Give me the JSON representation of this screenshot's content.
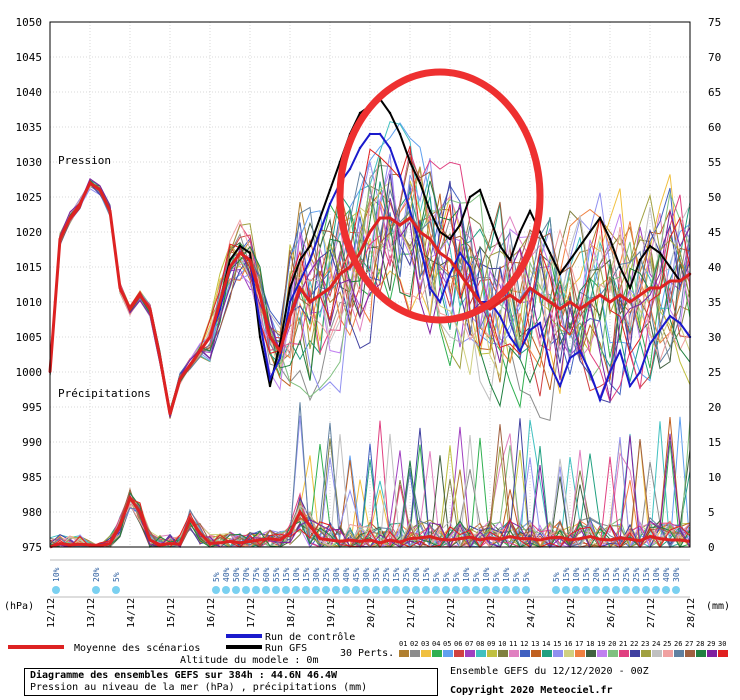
{
  "chart_data": {
    "type": "line",
    "left_axis": {
      "label": "(hPa)",
      "ylim": [
        975,
        1050
      ],
      "ticks": [
        "1050",
        "1045",
        "1040",
        "1035",
        "1030",
        "1025",
        "1020",
        "1015",
        "1010",
        "1005",
        "1000",
        "995",
        "990",
        "985",
        "980",
        "975"
      ]
    },
    "right_axis": {
      "label": "(mm)",
      "ylim": [
        0,
        75
      ],
      "ticks": [
        "75",
        "70",
        "65",
        "60",
        "55",
        "50",
        "45",
        "40",
        "35",
        "30",
        "25",
        "20",
        "15",
        "10",
        "5",
        "0"
      ]
    },
    "x_ticks": [
      "12/12",
      "13/12",
      "14/12",
      "15/12",
      "16/12",
      "17/12",
      "18/12",
      "19/12",
      "20/12",
      "21/12",
      "22/12",
      "23/12",
      "24/12",
      "25/12",
      "26/12",
      "27/12",
      "28/12"
    ],
    "pressure_label": "Pression",
    "precip_label": "Précipitations",
    "snow_marks": [
      {
        "day": 0.25,
        "pct": "10%"
      },
      {
        "day": 1.25,
        "pct": "20%"
      },
      {
        "day": 1.75,
        "pct": "5%"
      },
      {
        "day": 4.25,
        "pct": "5%"
      },
      {
        "day": 4.5,
        "pct": "40%"
      },
      {
        "day": 4.75,
        "pct": "50%"
      },
      {
        "day": 5.0,
        "pct": "70%"
      },
      {
        "day": 5.25,
        "pct": "75%"
      },
      {
        "day": 5.5,
        "pct": "60%"
      },
      {
        "day": 5.75,
        "pct": "55%"
      },
      {
        "day": 6.0,
        "pct": "15%"
      },
      {
        "day": 6.25,
        "pct": "10%"
      },
      {
        "day": 6.5,
        "pct": "15%"
      },
      {
        "day": 6.75,
        "pct": "30%"
      },
      {
        "day": 7.0,
        "pct": "25%"
      },
      {
        "day": 7.25,
        "pct": "30%"
      },
      {
        "day": 7.5,
        "pct": "40%"
      },
      {
        "day": 7.75,
        "pct": "45%"
      },
      {
        "day": 8.0,
        "pct": "30%"
      },
      {
        "day": 8.25,
        "pct": "35%"
      },
      {
        "day": 8.5,
        "pct": "25%"
      },
      {
        "day": 8.75,
        "pct": "15%"
      },
      {
        "day": 9.0,
        "pct": "25%"
      },
      {
        "day": 9.25,
        "pct": "20%"
      },
      {
        "day": 9.5,
        "pct": "15%"
      },
      {
        "day": 9.75,
        "pct": "5%"
      },
      {
        "day": 10.0,
        "pct": "5%"
      },
      {
        "day": 10.25,
        "pct": "5%"
      },
      {
        "day": 10.5,
        "pct": "10%"
      },
      {
        "day": 10.75,
        "pct": "5%"
      },
      {
        "day": 11.0,
        "pct": "10%"
      },
      {
        "day": 11.25,
        "pct": "5%"
      },
      {
        "day": 11.5,
        "pct": "10%"
      },
      {
        "day": 11.75,
        "pct": "5%"
      },
      {
        "day": 12.0,
        "pct": "5%"
      },
      {
        "day": 12.75,
        "pct": "5%"
      },
      {
        "day": 13.0,
        "pct": "15%"
      },
      {
        "day": 13.25,
        "pct": "10%"
      },
      {
        "day": 13.5,
        "pct": "15%"
      },
      {
        "day": 13.75,
        "pct": "20%"
      },
      {
        "day": 14.0,
        "pct": "15%"
      },
      {
        "day": 14.25,
        "pct": "15%"
      },
      {
        "day": 14.5,
        "pct": "25%"
      },
      {
        "day": 14.75,
        "pct": "25%"
      },
      {
        "day": 15.0,
        "pct": "15%"
      },
      {
        "day": 15.25,
        "pct": "10%"
      },
      {
        "day": 15.5,
        "pct": "40%"
      },
      {
        "day": 15.75,
        "pct": "30%"
      }
    ],
    "pressure_series": [
      {
        "name": "Moyenne des scénarios",
        "color": "#dd2222",
        "width": 3,
        "x": [
          0,
          0.25,
          0.5,
          0.75,
          1,
          1.25,
          1.5,
          1.75,
          2,
          2.25,
          2.5,
          2.75,
          3,
          3.25,
          3.5,
          3.75,
          4,
          4.25,
          4.5,
          4.75,
          5,
          5.25,
          5.5,
          5.75,
          6,
          6.25,
          6.5,
          6.75,
          7,
          7.25,
          7.5,
          7.75,
          8,
          8.25,
          8.5,
          8.75,
          9,
          9.25,
          9.5,
          9.75,
          10,
          10.25,
          10.5,
          10.75,
          11,
          11.25,
          11.5,
          11.75,
          12,
          12.25,
          12.5,
          12.75,
          13,
          13.25,
          13.5,
          13.75,
          14,
          14.25,
          14.5,
          14.75,
          15,
          15.25,
          15.5,
          15.75,
          16
        ],
        "y": [
          1000,
          1019,
          1022,
          1024,
          1027,
          1026,
          1023,
          1012,
          1009,
          1011,
          1009,
          1002,
          994,
          999,
          1001,
          1003,
          1005,
          1010,
          1015,
          1017,
          1016,
          1011,
          1005,
          1003,
          1008,
          1012,
          1010,
          1011,
          1012,
          1014,
          1015,
          1017,
          1020,
          1022,
          1022,
          1021,
          1022,
          1020,
          1019,
          1017,
          1016,
          1014,
          1012,
          1010,
          1009,
          1010,
          1011,
          1010,
          1012,
          1011,
          1010,
          1009,
          1010,
          1009,
          1010,
          1011,
          1010,
          1011,
          1010,
          1011,
          1012,
          1012,
          1013,
          1013,
          1014
        ]
      },
      {
        "name": "Run de contrôle",
        "color": "#1a1acc",
        "width": 2,
        "x": [
          0,
          0.25,
          0.5,
          0.75,
          1,
          1.25,
          1.5,
          1.75,
          2,
          2.25,
          2.5,
          2.75,
          3,
          3.25,
          3.5,
          3.75,
          4,
          4.25,
          4.5,
          4.75,
          5,
          5.25,
          5.5,
          5.75,
          6,
          6.25,
          6.5,
          6.75,
          7,
          7.25,
          7.5,
          7.75,
          8,
          8.25,
          8.5,
          8.75,
          9,
          9.25,
          9.5,
          9.75,
          10,
          10.25,
          10.5,
          10.75,
          11,
          11.25,
          11.5,
          11.75,
          12,
          12.25,
          12.5,
          12.75,
          13,
          13.25,
          13.5,
          13.75,
          14,
          14.25,
          14.5,
          14.75,
          15,
          15.25,
          15.5,
          15.75,
          16
        ],
        "y": [
          1000,
          1019,
          1022,
          1024,
          1027,
          1026,
          1023,
          1012,
          1009,
          1011,
          1009,
          1002,
          994,
          999,
          1001,
          1003,
          1005,
          1009,
          1015,
          1017,
          1016,
          1007,
          999,
          1002,
          1010,
          1013,
          1016,
          1020,
          1024,
          1027,
          1029,
          1032,
          1034,
          1034,
          1032,
          1028,
          1023,
          1018,
          1012,
          1010,
          1014,
          1017,
          1015,
          1010,
          1010,
          1008,
          1005,
          1003,
          1006,
          1007,
          1001,
          998,
          1002,
          1003,
          1000,
          996,
          1000,
          1003,
          998,
          1000,
          1004,
          1006,
          1008,
          1007,
          1005
        ]
      },
      {
        "name": "Run GFS",
        "color": "#000000",
        "width": 2,
        "x": [
          0,
          0.25,
          0.5,
          0.75,
          1,
          1.25,
          1.5,
          1.75,
          2,
          2.25,
          2.5,
          2.75,
          3,
          3.25,
          3.5,
          3.75,
          4,
          4.25,
          4.5,
          4.75,
          5,
          5.25,
          5.5,
          5.75,
          6,
          6.25,
          6.5,
          6.75,
          7,
          7.25,
          7.5,
          7.75,
          8,
          8.25,
          8.5,
          8.75,
          9,
          9.25,
          9.5,
          9.75,
          10,
          10.25,
          10.5,
          10.75,
          11,
          11.25,
          11.5,
          11.75,
          12,
          12.25,
          12.5,
          12.75,
          13,
          13.25,
          13.5,
          13.75,
          14,
          14.25,
          14.5,
          14.75,
          15,
          15.25,
          15.5,
          15.75,
          16
        ],
        "y": [
          1000,
          1019,
          1022,
          1024,
          1027,
          1026,
          1023,
          1012,
          1009,
          1011,
          1009,
          1002,
          994,
          999,
          1001,
          1003,
          1005,
          1010,
          1016,
          1018,
          1017,
          1005,
          998,
          1004,
          1012,
          1016,
          1018,
          1022,
          1026,
          1030,
          1034,
          1037,
          1038,
          1039,
          1037,
          1034,
          1030,
          1027,
          1023,
          1020,
          1019,
          1021,
          1025,
          1026,
          1022,
          1018,
          1016,
          1020,
          1023,
          1020,
          1017,
          1014,
          1016,
          1018,
          1020,
          1022,
          1019,
          1015,
          1012,
          1016,
          1018,
          1017,
          1015,
          1013,
          1014
        ]
      }
    ],
    "precip_series": [
      {
        "name": "Moyenne des scénarios",
        "color": "#dd2222",
        "width": 3,
        "x": [
          0,
          0.25,
          0.5,
          0.75,
          1,
          1.25,
          1.5,
          1.75,
          2,
          2.25,
          2.5,
          2.75,
          3,
          3.25,
          3.5,
          3.75,
          4,
          4.25,
          4.5,
          4.75,
          5,
          5.25,
          5.5,
          5.75,
          6,
          6.25,
          6.5,
          6.75,
          7,
          7.25,
          7.5,
          7.75,
          8,
          8.25,
          8.5,
          8.75,
          9,
          9.25,
          9.5,
          9.75,
          10,
          10.25,
          10.5,
          10.75,
          11,
          11.25,
          11.5,
          11.75,
          12,
          12.25,
          12.5,
          12.75,
          13,
          13.25,
          13.5,
          13.75,
          14,
          14.25,
          14.5,
          14.75,
          15,
          15.25,
          15.5,
          15.75,
          16
        ],
        "y": [
          0,
          0.5,
          0.3,
          0.4,
          0.3,
          0.2,
          0.5,
          3,
          7,
          5,
          1,
          0.3,
          0.5,
          0.4,
          4,
          2,
          0.5,
          0.6,
          0.8,
          0.6,
          0.8,
          1,
          1.2,
          1,
          2,
          5,
          3,
          1.2,
          1,
          0.8,
          1,
          0.8,
          1,
          0.6,
          1,
          0.7,
          1.2,
          1.3,
          1.5,
          1.1,
          1,
          1.2,
          1.4,
          1,
          1.3,
          1.1,
          1.5,
          1.2,
          1.2,
          1,
          1.3,
          1.4,
          1,
          1.2,
          1.5,
          1.1,
          1,
          1.3,
          1.1,
          0.9,
          1.5,
          1.2,
          1,
          1,
          0.8
        ]
      }
    ],
    "legend": {
      "mean": "Moyenne des scénarios",
      "control": "Run de contrôle",
      "gfs": "Run GFS",
      "perts": "30 Perts.",
      "pert_ids": [
        "01",
        "02",
        "03",
        "04",
        "05",
        "06",
        "07",
        "08",
        "09",
        "10",
        "11",
        "12",
        "13",
        "14",
        "15",
        "16",
        "17",
        "18",
        "19",
        "20",
        "21",
        "22",
        "23",
        "24",
        "25",
        "26",
        "27",
        "28",
        "29",
        "30"
      ],
      "pert_colors": [
        "#b07f2f",
        "#8c8c8c",
        "#f0c040",
        "#30b050",
        "#60a0f0",
        "#d04040",
        "#a040c0",
        "#40c0c0",
        "#c0c040",
        "#808040",
        "#e080c0",
        "#4060c0",
        "#c06020",
        "#20a080",
        "#9090f0",
        "#d0d080",
        "#f08040",
        "#406040",
        "#c080f0",
        "#80c080",
        "#e04080",
        "#4040a0",
        "#a0a040",
        "#c0c0c0",
        "#f0a0a0",
        "#6080a0",
        "#a06040",
        "#208040",
        "#8020a0",
        "#e02020"
      ],
      "altitude": "Altitude du modele : 0m"
    },
    "footer": {
      "title": "Diagramme des ensembles GEFS sur 384h : 44.6N 46.4W",
      "subtitle": "Pression au niveau de la mer (hPa) , précipitations (mm)",
      "run": "Ensemble GEFS du 12/12/2020 - 00Z",
      "copyright": "Copyright 2020 Meteociel.fr"
    }
  }
}
